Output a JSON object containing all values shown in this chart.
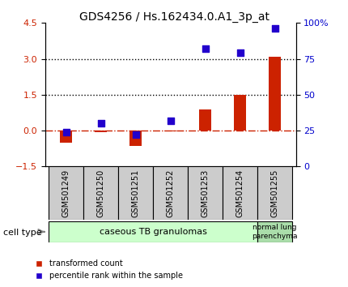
{
  "title": "GDS4256 / Hs.162434.0.A1_3p_at",
  "samples": [
    "GSM501249",
    "GSM501250",
    "GSM501251",
    "GSM501252",
    "GSM501253",
    "GSM501254",
    "GSM501255"
  ],
  "transformed_count": [
    -0.5,
    -0.05,
    -0.65,
    -0.02,
    0.9,
    1.5,
    3.1
  ],
  "percentile_rank": [
    24,
    30,
    22,
    32,
    82,
    79,
    96
  ],
  "ylim_left": [
    -1.5,
    4.5
  ],
  "ylim_right": [
    0,
    100
  ],
  "yticks_left": [
    -1.5,
    0,
    1.5,
    3,
    4.5
  ],
  "yticks_right": [
    0,
    25,
    50,
    75,
    100
  ],
  "hlines": [
    0,
    1.5,
    3.0
  ],
  "red_color": "#cc2200",
  "blue_color": "#2200cc",
  "bar_width": 0.35,
  "cell_type_groups": [
    {
      "label": "caseous TB granulomas",
      "samples": [
        0,
        1,
        2,
        3,
        4,
        5
      ],
      "color": "#ccffcc"
    },
    {
      "label": "normal lung\nparenchyma",
      "samples": [
        6
      ],
      "color": "#aaddaa"
    }
  ],
  "x_label_color": "#333333",
  "dotted_line_color": "#000000",
  "zero_line_color": "#cc2200",
  "bg_color": "#ffffff",
  "plot_bg_color": "#ffffff",
  "tick_label_color_left": "#cc2200",
  "tick_label_color_right": "#0000cc",
  "legend_red_label": "transformed count",
  "legend_blue_label": "percentile rank within the sample"
}
